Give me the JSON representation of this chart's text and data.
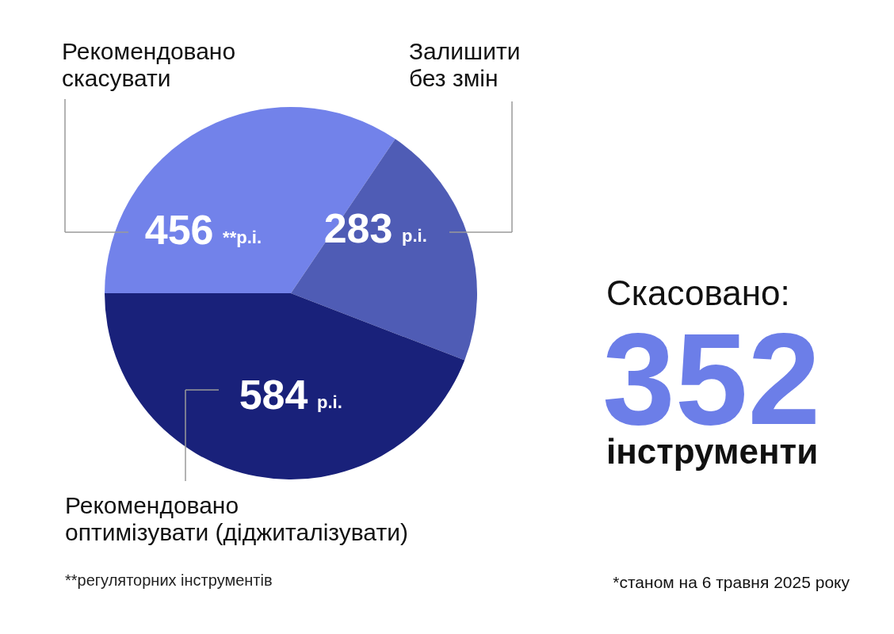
{
  "chart_data": {
    "type": "pie",
    "categories": [
      "Рекомендовано скасувати",
      "Залишити без змін",
      "Рекомендовано оптимізувати (діджиталізувати)"
    ],
    "values": [
      456,
      283,
      584
    ],
    "colors": [
      "#7282ea",
      "#4f5cb5",
      "#19217a"
    ],
    "value_labels": [
      "456 **р.і.",
      "283 р.і.",
      "584 р.і."
    ],
    "annotations": [
      "Скасовано:",
      "352",
      "інструменти",
      "**регуляторних інструментів",
      "*станом на 6 травня 2025 року"
    ]
  }
}
